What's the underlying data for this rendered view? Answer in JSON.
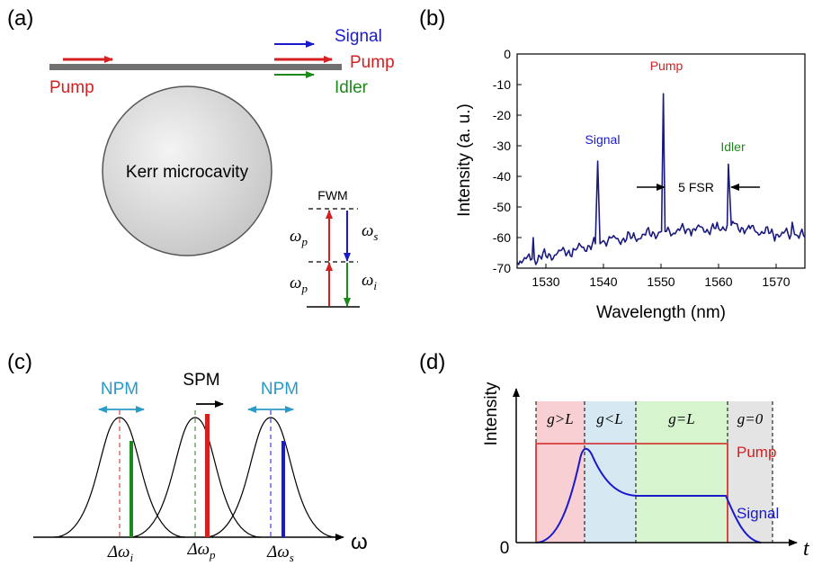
{
  "panels": {
    "a": {
      "label": "(a)",
      "pump_in": "Pump",
      "signal_out": "Signal",
      "pump_out": "Pump",
      "idler_out": "Idler",
      "cavity": "Kerr microcavity",
      "fwm": "FWM",
      "omega_p_upper": "ω",
      "omega_p_upper_sub": "p",
      "omega_p_lower": "ω",
      "omega_p_lower_sub": "p",
      "omega_s": "ω",
      "omega_s_sub": "s",
      "omega_i": "ω",
      "omega_i_sub": "i"
    },
    "b": {
      "label": "(b)",
      "ylabel": "Intensity (a. u.)",
      "xlabel": "Wavelength (nm)",
      "yticks": [
        "0",
        "-10",
        "-20",
        "-30",
        "-40",
        "-50",
        "-60",
        "-70"
      ],
      "xticks": [
        "1530",
        "1540",
        "1550",
        "1560",
        "1570"
      ],
      "pump": "Pump",
      "signal": "Signal",
      "idler": "Idler",
      "fsr": "5 FSR"
    },
    "c": {
      "label": "(c)",
      "npm_left": "NPM",
      "spm": "SPM",
      "npm_right": "NPM",
      "dw_i": "Δω",
      "dw_i_sub": "i",
      "dw_p": "Δω",
      "dw_p_sub": "p",
      "dw_s": "Δω",
      "dw_s_sub": "s",
      "omega_axis": "ω"
    },
    "d": {
      "label": "(d)",
      "ylabel": "Intensity",
      "origin": "0",
      "taxis": "t",
      "regions": [
        "g>L",
        "g<L",
        "g=L",
        "g=0"
      ],
      "pump": "Pump",
      "signal": "Signal"
    }
  },
  "colors": {
    "pump": "#d42020",
    "signal": "#1a1acc",
    "idler": "#1a8a1a",
    "spectrum": "#1a1a80",
    "npm": "#2a9ac8",
    "region1": "#f8cfd2",
    "region2": "#d6e8f2",
    "region3": "#d6f5cf",
    "region4": "#e4e4e4"
  },
  "chart_data": {
    "type": "line",
    "title": "",
    "xlabel": "Wavelength (nm)",
    "ylabel": "Intensity (a. u.)",
    "xlim": [
      1525,
      1575
    ],
    "ylim": [
      -70,
      0
    ],
    "series": [
      {
        "x": [
          1525,
          1527.6,
          1527.8,
          1528,
          1530,
          1535,
          1538.6,
          1539,
          1539.4,
          1540,
          1545,
          1550.1,
          1550.4,
          1550.7,
          1555,
          1560,
          1561.5,
          1561.7,
          1562.2,
          1565,
          1570,
          1572.6,
          1572.8,
          1573.2,
          1575
        ],
        "y": [
          -68,
          -67,
          -60,
          -67,
          -66,
          -64,
          -62,
          -35,
          -62,
          -61,
          -60,
          -58,
          -13,
          -58,
          -57.5,
          -57,
          -56,
          -36,
          -56,
          -57,
          -59,
          -59,
          -55,
          -59,
          -60
        ]
      }
    ],
    "annotations": [
      "Signal",
      "Pump",
      "Idler",
      "5 FSR"
    ]
  }
}
